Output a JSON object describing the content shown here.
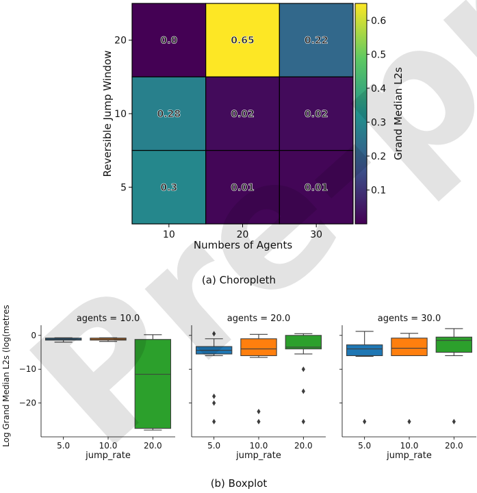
{
  "watermark": "Pre-proof",
  "heatmap": {
    "caption": "(a) Choropleth",
    "xlabel": "Numbers of Agents",
    "ylabel": "Reversible Jump Window",
    "colorbar_label": "Grand Median L2s",
    "colorbar_ticks": [
      "0.1",
      "0.2",
      "0.3",
      "0.4",
      "0.5",
      "0.6"
    ],
    "x_categories": [
      "10",
      "20",
      "30"
    ],
    "y_categories": [
      "20",
      "10",
      "5"
    ],
    "cell_labels": [
      [
        "0.0",
        "0.65",
        "0.22"
      ],
      [
        "0.28",
        "0.02",
        "0.02"
      ],
      [
        "0.3",
        "0.01",
        "0.01"
      ]
    ]
  },
  "boxplot": {
    "caption": "(b) Boxplot",
    "ylabel": "Log Grand Median L2s (log(metres",
    "xlabel": "jump_rate",
    "panel_titles": [
      "agents = 10.0",
      "agents = 20.0",
      "agents = 30.0"
    ],
    "x_ticks": [
      "5.0",
      "10.0",
      "20.0"
    ],
    "y_ticks": [
      "0",
      "−10",
      "−20"
    ]
  },
  "chart_data": [
    {
      "type": "heatmap",
      "title": "",
      "xlabel": "Numbers of Agents",
      "ylabel": "Reversible Jump Window",
      "x_categories": [
        "10",
        "20",
        "30"
      ],
      "y_categories": [
        "20",
        "10",
        "5"
      ],
      "values": [
        [
          0.0,
          0.65,
          0.22
        ],
        [
          0.28,
          0.02,
          0.02
        ],
        [
          0.3,
          0.01,
          0.01
        ]
      ],
      "colorbar": {
        "label": "Grand Median L2s",
        "range": [
          0.0,
          0.65
        ],
        "colormap": "viridis"
      }
    },
    {
      "type": "box",
      "ylabel": "Log Grand Median L2s (log(metres",
      "xlabel": "jump_rate",
      "ylim": [
        -30,
        3
      ],
      "shared_y": true,
      "categories": [
        "5.0",
        "10.0",
        "20.0"
      ],
      "colors": {
        "5.0": "#1f77b4",
        "10.0": "#ff7f0e",
        "20.0": "#2ca02c"
      },
      "panels": [
        {
          "title": "agents = 10.0",
          "boxes": [
            {
              "category": "5.0",
              "q1": -1.4,
              "median": -1.1,
              "q3": -0.8,
              "whisker_low": -2.0,
              "whisker_high": -0.7,
              "outliers": []
            },
            {
              "category": "10.0",
              "q1": -1.4,
              "median": -1.1,
              "q3": -0.8,
              "whisker_low": -1.8,
              "whisker_high": -0.7,
              "outliers": []
            },
            {
              "category": "20.0",
              "q1": -27.5,
              "median": -11.5,
              "q3": -1.2,
              "whisker_low": -28.0,
              "whisker_high": 0.2,
              "outliers": []
            }
          ]
        },
        {
          "title": "agents = 20.0",
          "boxes": [
            {
              "category": "5.0",
              "q1": -5.5,
              "median": -4.4,
              "q3": -3.3,
              "whisker_low": -6.0,
              "whisker_high": -1.0,
              "outliers": [
                -18.0,
                -20.0,
                -25.5,
                0.5
              ]
            },
            {
              "category": "10.0",
              "q1": -6.0,
              "median": -4.0,
              "q3": -1.0,
              "whisker_low": -6.5,
              "whisker_high": 0.3,
              "outliers": [
                -22.5,
                -25.5
              ]
            },
            {
              "category": "20.0",
              "q1": -4.0,
              "median": -3.5,
              "q3": 0.0,
              "whisker_low": -5.5,
              "whisker_high": 0.5,
              "outliers": [
                -10.0,
                -16.5,
                -25.5
              ]
            }
          ]
        },
        {
          "title": "agents = 30.0",
          "boxes": [
            {
              "category": "5.0",
              "q1": -6.0,
              "median": -4.0,
              "q3": -2.8,
              "whisker_low": -6.2,
              "whisker_high": 1.2,
              "outliers": [
                -25.5
              ]
            },
            {
              "category": "10.0",
              "q1": -6.0,
              "median": -3.8,
              "q3": -0.8,
              "whisker_low": -6.0,
              "whisker_high": 0.6,
              "outliers": [
                -25.5
              ]
            },
            {
              "category": "20.0",
              "q1": -5.0,
              "median": -1.5,
              "q3": -0.5,
              "whisker_low": -6.0,
              "whisker_high": 2.0,
              "outliers": [
                -25.5
              ]
            }
          ]
        }
      ]
    }
  ]
}
